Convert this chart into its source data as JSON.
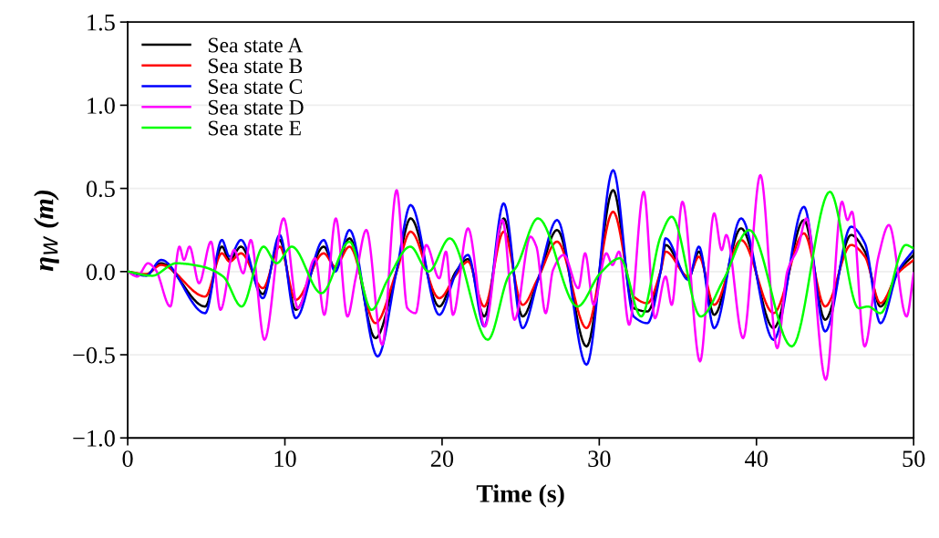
{
  "chart_data": {
    "type": "line",
    "xlabel": "Time (s)",
    "ylabel": "η$_{W}$ (m)",
    "xlim": [
      0,
      50
    ],
    "xticks": [
      0,
      10,
      20,
      30,
      40,
      50
    ],
    "ylim": [
      -1.0,
      1.5
    ],
    "yticks": [
      {
        "value": -1.0,
        "label": "−1.0"
      },
      {
        "value": -0.5,
        "label": "−0.5"
      },
      {
        "value": 0.0,
        "label": "0.0"
      },
      {
        "value": 0.5,
        "label": "0.5"
      },
      {
        "value": 1.0,
        "label": "1.0"
      },
      {
        "value": 1.5,
        "label": "1.5"
      }
    ],
    "grid": "y",
    "legend": "top left",
    "marker": "none",
    "line_style": "solid",
    "series": [
      {
        "name": "Sea state A",
        "color": "#000000",
        "x": [
          0,
          1.16,
          2.13,
          4.93,
          5.99,
          6.48,
          7.21,
          8.6,
          9.67,
          10.69,
          12.47,
          13.2,
          14.11,
          15.76,
          17.1,
          18.0,
          19.82,
          20.88,
          21.65,
          22.68,
          23.92,
          25.12,
          26.1,
          27.32,
          29.19,
          30.88,
          32.19,
          33.06,
          33.9,
          34.22,
          35.67,
          36.34,
          37.31,
          39.02,
          41.09,
          43.02,
          44.37,
          46.02,
          46.9,
          47.89,
          49.0,
          50
        ],
        "values": [
          0,
          -0.02,
          0.05,
          -0.21,
          0.15,
          0.07,
          0.15,
          -0.135,
          0.19,
          -0.23,
          0.15,
          0.02,
          0.2,
          -0.4,
          0.0,
          0.32,
          -0.21,
          0.0,
          0.075,
          -0.27,
          0.32,
          -0.27,
          -0.05,
          0.25,
          -0.45,
          0.49,
          -0.22,
          -0.24,
          0.0,
          0.16,
          -0.04,
          0.12,
          -0.26,
          0.26,
          -0.34,
          0.31,
          -0.29,
          0.22,
          0.12,
          -0.21,
          0.0,
          0.1
        ]
      },
      {
        "name": "Sea state B",
        "color": "#ff0000",
        "x": [
          0,
          1.16,
          2.13,
          4.93,
          5.99,
          6.48,
          7.21,
          8.6,
          9.67,
          10.69,
          12.47,
          13.2,
          14.11,
          15.76,
          17.1,
          18.0,
          19.82,
          20.88,
          21.65,
          22.68,
          23.92,
          25.12,
          26.1,
          27.32,
          29.19,
          30.88,
          32.19,
          33.06,
          33.9,
          34.22,
          35.67,
          36.34,
          37.31,
          39.02,
          41.09,
          43.02,
          44.37,
          46.02,
          46.9,
          47.89,
          49.0,
          50
        ],
        "values": [
          0,
          -0.015,
          0.04,
          -0.15,
          0.11,
          0.06,
          0.11,
          -0.1,
          0.15,
          -0.17,
          0.11,
          0.03,
          0.15,
          -0.31,
          0.0,
          0.24,
          -0.16,
          -0.02,
          0.06,
          -0.21,
          0.24,
          -0.2,
          -0.04,
          0.18,
          -0.34,
          0.36,
          -0.15,
          -0.19,
          0.0,
          0.12,
          -0.03,
          0.09,
          -0.2,
          0.19,
          -0.25,
          0.23,
          -0.21,
          0.16,
          0.09,
          -0.19,
          -0.01,
          0.07
        ]
      },
      {
        "name": "Sea state C",
        "color": "#0000ff",
        "x": [
          0,
          1.16,
          2.13,
          4.93,
          5.99,
          6.48,
          7.21,
          8.6,
          9.67,
          10.69,
          12.47,
          13.2,
          14.11,
          15.9,
          17.1,
          18.0,
          19.82,
          20.88,
          21.65,
          22.68,
          23.92,
          25.12,
          26.1,
          27.32,
          29.19,
          30.88,
          32.19,
          33.06,
          33.9,
          34.22,
          35.67,
          36.34,
          37.31,
          39.02,
          41.09,
          43.02,
          44.37,
          46.02,
          46.9,
          47.89,
          49.0,
          50
        ],
        "values": [
          0,
          -0.025,
          0.07,
          -0.25,
          0.19,
          0.09,
          0.19,
          -0.16,
          0.22,
          -0.28,
          0.19,
          0.0,
          0.25,
          -0.51,
          0.0,
          0.4,
          -0.26,
          -0.01,
          0.1,
          -0.33,
          0.41,
          -0.34,
          -0.05,
          0.31,
          -0.56,
          0.61,
          -0.27,
          -0.31,
          0.0,
          0.2,
          -0.05,
          0.15,
          -0.34,
          0.32,
          -0.41,
          0.39,
          -0.36,
          0.27,
          0.17,
          -0.31,
          0.0,
          0.13
        ]
      },
      {
        "name": "Sea state D",
        "color": "#ff00ff",
        "x": [
          0,
          0.61,
          1.29,
          1.78,
          2.71,
          3.29,
          3.58,
          3.93,
          4.54,
          5.3,
          5.9,
          6.77,
          7.35,
          7.83,
          8.7,
          9.92,
          10.83,
          11.93,
          12.51,
          13.24,
          13.98,
          14.5,
          15.18,
          16.19,
          17.11,
          17.79,
          18.31,
          18.99,
          19.82,
          20.25,
          20.69,
          21.65,
          22.72,
          23.84,
          24.61,
          25.62,
          26.0,
          26.59,
          27.06,
          27.74,
          28.67,
          29.1,
          29.64,
          30.45,
          30.84,
          31.26,
          31.9,
          32.83,
          33.54,
          34.22,
          34.61,
          35.29,
          36.41,
          37.31,
          37.79,
          38.08,
          39.15,
          40.25,
          41.32,
          41.96,
          42.63,
          43.18,
          44.41,
          45.44,
          45.79,
          46.08,
          46.88,
          47.76,
          48.43,
          49.55,
          50
        ],
        "values": [
          0,
          -0.03,
          0.05,
          0.01,
          -0.21,
          0.15,
          0.07,
          0.15,
          -0.07,
          0.18,
          -0.23,
          0.13,
          -0.01,
          0.19,
          -0.41,
          0.32,
          -0.22,
          0.08,
          -0.26,
          0.32,
          -0.27,
          -0.04,
          0.25,
          -0.44,
          0.49,
          -0.22,
          -0.25,
          0.16,
          -0.04,
          0.12,
          -0.26,
          0.26,
          -0.33,
          0.31,
          -0.29,
          0.21,
          0.15,
          -0.25,
          0.01,
          0.1,
          -0.1,
          0.11,
          -0.2,
          0.11,
          0.04,
          0.12,
          -0.32,
          0.48,
          -0.28,
          -0.03,
          -0.2,
          0.42,
          -0.54,
          0.35,
          0.13,
          0.22,
          -0.4,
          0.58,
          -0.46,
          0.0,
          0.14,
          0.32,
          -0.65,
          0.42,
          0.31,
          0.36,
          -0.45,
          0.09,
          0.28,
          -0.27,
          -0.01
        ]
      },
      {
        "name": "Sea state E",
        "color": "#00ff00",
        "x": [
          0,
          1.55,
          3.09,
          4.73,
          6.08,
          7.25,
          8.64,
          9.47,
          10.44,
          12.32,
          14.11,
          15.52,
          16.53,
          17.98,
          19.14,
          20.49,
          22.91,
          24.27,
          24.67,
          26.1,
          28.61,
          30.06,
          31.32,
          32.67,
          33.9,
          34.61,
          36.45,
          37.9,
          39.54,
          42.25,
          44.67,
          46.5,
          47.1,
          47.89,
          49.5,
          50
        ],
        "values": [
          0,
          -0.025,
          0.05,
          0.03,
          -0.03,
          -0.21,
          0.15,
          0.05,
          0.15,
          -0.13,
          0.18,
          -0.23,
          -0.05,
          0.15,
          0.0,
          0.2,
          -0.41,
          -0.02,
          0.02,
          0.32,
          -0.21,
          -0.01,
          0.08,
          -0.27,
          0.21,
          0.33,
          -0.27,
          -0.05,
          0.25,
          -0.45,
          0.48,
          -0.22,
          -0.21,
          -0.25,
          0.16,
          0.14
        ]
      }
    ]
  }
}
